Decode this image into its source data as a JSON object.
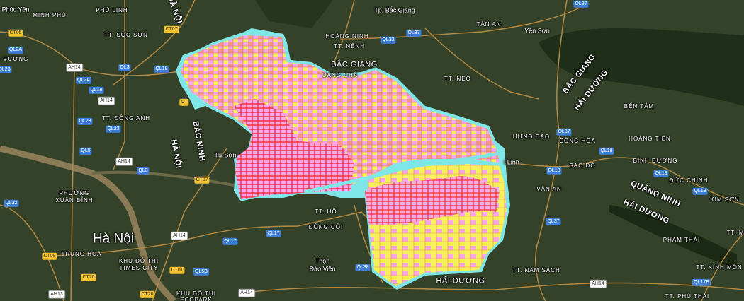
{
  "map": {
    "view": "satellite",
    "colors": {
      "land": "#34422a",
      "forest": "#1f2e18",
      "river": "#8a7a55",
      "road": "#b08a45",
      "plan_pink": "#f7a6e8",
      "plan_salmon": "#f19a86",
      "plan_yellow": "#f5f05a",
      "plan_red": "#f21e2a",
      "plan_cyan": "#7ee6e6"
    },
    "places": [
      {
        "name": "Phúc Yên",
        "style": "mixed"
      },
      {
        "name": "MINH PHÚ"
      },
      {
        "name": "PHÚ LINH"
      },
      {
        "name": "TT. SÓC SƠN"
      },
      {
        "name": "G VƯƠNG"
      },
      {
        "name": "TT. ĐÔNG ANH"
      },
      {
        "name": "Từ Sơn",
        "style": "mixed"
      },
      {
        "name": "PHƯỜNG"
      },
      {
        "name": "XUÂN ĐỈNH"
      },
      {
        "name": "Hà Nội",
        "style": "big"
      },
      {
        "name": "TRUNG HOÀ"
      },
      {
        "name": "KHU ĐÔ THỊ"
      },
      {
        "name": "TIMES CITY"
      },
      {
        "name": "KHU ĐÔ THỊ"
      },
      {
        "name": "ECOPARK"
      },
      {
        "name": "Tp. Bắc Giang",
        "style": "mixed"
      },
      {
        "name": "HOÀNG NINH"
      },
      {
        "name": "TT. NÊNH"
      },
      {
        "name": "BẮC GIANG",
        "style": "city"
      },
      {
        "name": "UANG CHÂ"
      },
      {
        "name": "TT. NEO"
      },
      {
        "name": "TÂN AN"
      },
      {
        "name": "Yên Sơn",
        "style": "mixed"
      },
      {
        "name": "BẾN TẮM"
      },
      {
        "name": "HƯNG ĐẠO"
      },
      {
        "name": "CỘNG HÒA"
      },
      {
        "name": "HOÀNG TIẾN"
      },
      {
        "name": "i Linh",
        "style": "mixed"
      },
      {
        "name": "SAO ĐỎ"
      },
      {
        "name": "BÌNH DƯƠNG"
      },
      {
        "name": "ĐỨC CHÍNH"
      },
      {
        "name": "KIM SƠN"
      },
      {
        "name": "VÂN AN"
      },
      {
        "name": "PHẠM THÁI"
      },
      {
        "name": "TT. KINH MÔN"
      },
      {
        "name": "TT. PHÚ THÁI"
      },
      {
        "name": "TT. NAM SÁCH"
      },
      {
        "name": "TT. M"
      },
      {
        "name": "TT. HỒ"
      },
      {
        "name": "ĐÔNG CÔI"
      },
      {
        "name": "Thôn",
        "style": "mixed"
      },
      {
        "name": "Đào Viên",
        "style": "mixed"
      },
      {
        "name": "HẢI DƯƠNG",
        "style": "city"
      }
    ],
    "regions": [
      {
        "name": "HÀ NỘI"
      },
      {
        "name": "BẮC NINH"
      },
      {
        "name": "HÀ NỘI"
      },
      {
        "name": "BẮC GIANG"
      },
      {
        "name": "HẢI DƯƠNG"
      },
      {
        "name": "QUẢNG NINH"
      },
      {
        "name": "HẢI DƯƠNG"
      }
    ],
    "roads": [
      {
        "code": "CT05",
        "type": "ct"
      },
      {
        "code": "QL2A",
        "type": "ql"
      },
      {
        "code": "QL23",
        "type": "ql"
      },
      {
        "code": "AH14",
        "type": "ah"
      },
      {
        "code": "QL2A",
        "type": "ql"
      },
      {
        "code": "QL18",
        "type": "ql"
      },
      {
        "code": "AH14",
        "type": "ah"
      },
      {
        "code": "QL3",
        "type": "ql"
      },
      {
        "code": "QL18",
        "type": "ql"
      },
      {
        "code": "CT07",
        "type": "ct"
      },
      {
        "code": "QL23",
        "type": "ql"
      },
      {
        "code": "QL23",
        "type": "ql"
      },
      {
        "code": "CT",
        "type": "ct"
      },
      {
        "code": "QL5",
        "type": "ql"
      },
      {
        "code": "AH14",
        "type": "ah"
      },
      {
        "code": "QL3",
        "type": "ql"
      },
      {
        "code": "CT07",
        "type": "ct"
      },
      {
        "code": "QL32",
        "type": "ql"
      },
      {
        "code": "CT08",
        "type": "ct"
      },
      {
        "code": "AH14",
        "type": "ah"
      },
      {
        "code": "QL17",
        "type": "ql"
      },
      {
        "code": "CT01",
        "type": "ct"
      },
      {
        "code": "QL5B",
        "type": "ql"
      },
      {
        "code": "CT20",
        "type": "ct"
      },
      {
        "code": "AH13",
        "type": "ah"
      },
      {
        "code": "CT20",
        "type": "ct"
      },
      {
        "code": "AH14",
        "type": "ah"
      },
      {
        "code": "QL37",
        "type": "ql"
      },
      {
        "code": "QL32",
        "type": "ql"
      },
      {
        "code": "QL37",
        "type": "ql"
      },
      {
        "code": "QL37",
        "type": "ql"
      },
      {
        "code": "QL18",
        "type": "ql"
      },
      {
        "code": "QL18",
        "type": "ql"
      },
      {
        "code": "QL18",
        "type": "ql"
      },
      {
        "code": "QL18",
        "type": "ql"
      },
      {
        "code": "QL37",
        "type": "ql"
      },
      {
        "code": "AH14",
        "type": "ah"
      },
      {
        "code": "QL17B",
        "type": "ql"
      },
      {
        "code": "QL17",
        "type": "ql"
      },
      {
        "code": "QL38",
        "type": "ql"
      }
    ]
  }
}
